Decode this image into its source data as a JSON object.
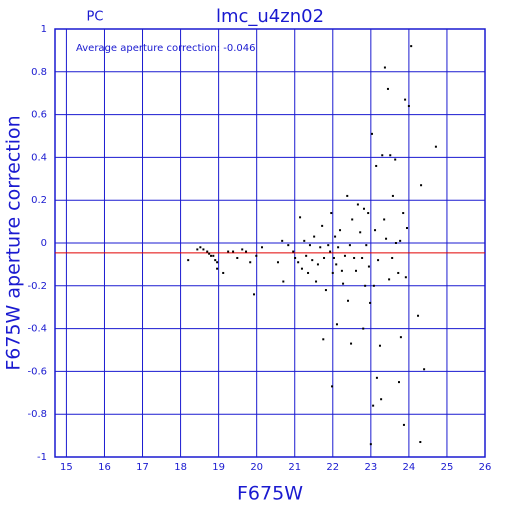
{
  "chart_data": {
    "type": "scatter",
    "title": "lmc_u4zn02",
    "subtitle": "PC",
    "annotation": "Average aperture correction: -0.046",
    "x_label": "F675W",
    "y_label": "F675W aperture correction",
    "reference_line": -0.046,
    "reference_color": "#e00000",
    "axis_color": "#1a1ad0",
    "grid": true,
    "xlim": [
      14.7,
      26
    ],
    "ylim": [
      -1,
      1
    ],
    "xticks": [
      15,
      16,
      17,
      18,
      19,
      20,
      21,
      22,
      23,
      24,
      25,
      26
    ],
    "yticks": [
      -1,
      -0.8,
      -0.6,
      -0.4,
      -0.2,
      0,
      0.2,
      0.4,
      0.6,
      0.8,
      1
    ],
    "series": [
      {
        "color": "#000000",
        "x": [
          18.2,
          18.44,
          18.52,
          18.6,
          18.7,
          18.75,
          18.8,
          18.86,
          18.91,
          18.96,
          18.96,
          19.12,
          19.25,
          19.38,
          19.49,
          19.62,
          19.72,
          19.83,
          19.93,
          19.99,
          20.14,
          20.56,
          20.67,
          20.7,
          20.83,
          20.96,
          21.01,
          21.09,
          21.14,
          21.19,
          21.25,
          21.3,
          21.35,
          21.4,
          21.46,
          21.51,
          21.56,
          21.61,
          21.67,
          21.72,
          21.75,
          21.77,
          21.82,
          21.88,
          21.93,
          21.96,
          21.98,
          22.0,
          22.03,
          22.06,
          22.09,
          22.11,
          22.14,
          22.19,
          22.24,
          22.27,
          22.32,
          22.38,
          22.4,
          22.45,
          22.51,
          22.48,
          22.56,
          22.61,
          22.66,
          22.72,
          22.77,
          22.8,
          22.82,
          22.85,
          22.88,
          22.93,
          22.95,
          22.98,
          23.0,
          23.03,
          23.06,
          23.08,
          23.11,
          23.14,
          23.16,
          23.19,
          23.24,
          23.27,
          23.3,
          23.35,
          23.37,
          23.4,
          23.45,
          23.48,
          23.51,
          23.56,
          23.58,
          23.64,
          23.66,
          23.72,
          23.74,
          23.77,
          23.79,
          23.85,
          23.87,
          23.9,
          23.92,
          23.95,
          24.0,
          24.06,
          24.24,
          24.32,
          24.3,
          24.4,
          24.71
        ],
        "values": [
          -0.08,
          -0.03,
          -0.02,
          -0.03,
          -0.04,
          -0.05,
          -0.06,
          -0.06,
          -0.08,
          -0.09,
          -0.12,
          -0.14,
          -0.04,
          -0.04,
          -0.07,
          -0.03,
          -0.04,
          -0.09,
          -0.24,
          -0.06,
          -0.02,
          -0.09,
          0.01,
          -0.18,
          -0.01,
          -0.04,
          -0.07,
          -0.09,
          0.12,
          -0.12,
          0.01,
          -0.06,
          -0.14,
          -0.01,
          -0.08,
          0.03,
          -0.18,
          -0.1,
          -0.02,
          0.08,
          -0.45,
          -0.07,
          -0.22,
          -0.01,
          -0.04,
          0.14,
          -0.67,
          -0.14,
          -0.07,
          0.03,
          -0.1,
          -0.38,
          -0.02,
          0.06,
          -0.13,
          -0.19,
          -0.06,
          0.22,
          -0.27,
          -0.01,
          0.11,
          -0.47,
          -0.07,
          -0.13,
          0.18,
          0.05,
          -0.07,
          -0.4,
          0.16,
          -0.2,
          -0.01,
          0.14,
          -0.11,
          -0.28,
          -0.94,
          0.51,
          -0.76,
          -0.2,
          0.06,
          0.36,
          -0.63,
          -0.08,
          -0.48,
          -0.73,
          0.41,
          0.11,
          0.82,
          0.02,
          0.72,
          -0.17,
          0.41,
          -0.07,
          0.22,
          0.39,
          0.0,
          -0.14,
          -0.65,
          0.01,
          -0.44,
          0.14,
          -0.85,
          0.67,
          -0.16,
          0.07,
          0.64,
          0.92,
          -0.34,
          0.27,
          -0.93,
          -0.59,
          0.45
        ]
      }
    ]
  }
}
